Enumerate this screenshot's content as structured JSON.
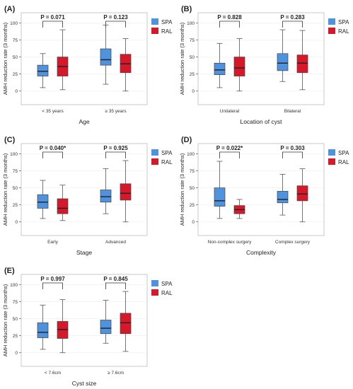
{
  "colors": {
    "spa": "#4F93DE",
    "ral": "#D6182B",
    "grid": "#eeeeee",
    "axis": "#555555",
    "text": "#222222"
  },
  "legend": [
    "SPA",
    "RAL"
  ],
  "chart_data": [
    {
      "panel": "(A)",
      "type": "box",
      "xlabel": "Age",
      "ylabel": "AMH reduction rate (3 months)",
      "ylim": [
        -20,
        115
      ],
      "yticks": [
        0,
        25,
        50,
        75,
        100
      ],
      "series": [
        "SPA",
        "RAL"
      ],
      "legend_position": "top-right",
      "groups": [
        {
          "label": "< 35 years",
          "p_label": "P = 0.071",
          "boxes": [
            {
              "series": "SPA",
              "min": 5,
              "q1": 22,
              "median": 29,
              "q3": 38,
              "max": 55
            },
            {
              "series": "RAL",
              "min": 2,
              "q1": 22,
              "median": 36,
              "q3": 50,
              "max": 90
            }
          ]
        },
        {
          "label": "≥ 35 years",
          "p_label": "P = 0.123",
          "boxes": [
            {
              "series": "SPA",
              "min": 10,
              "q1": 38,
              "median": 46,
              "q3": 62,
              "max": 97
            },
            {
              "series": "RAL",
              "min": 0,
              "q1": 27,
              "median": 40,
              "q3": 54,
              "max": 77
            }
          ]
        }
      ]
    },
    {
      "panel": "(B)",
      "type": "box",
      "xlabel": "Location of cyst",
      "ylabel": "AMH reduction rate (3 months)",
      "ylim": [
        -20,
        115
      ],
      "yticks": [
        0,
        25,
        50,
        75,
        100
      ],
      "series": [
        "SPA",
        "RAL"
      ],
      "legend_position": "top-right",
      "groups": [
        {
          "label": "Unilateral",
          "p_label": "P = 0.828",
          "boxes": [
            {
              "series": "SPA",
              "min": 5,
              "q1": 24,
              "median": 31,
              "q3": 41,
              "max": 70
            },
            {
              "series": "RAL",
              "min": 0,
              "q1": 22,
              "median": 34,
              "q3": 50,
              "max": 77
            }
          ]
        },
        {
          "label": "Bilateral",
          "p_label": "P = 0.283",
          "boxes": [
            {
              "series": "SPA",
              "min": 14,
              "q1": 30,
              "median": 41,
              "q3": 55,
              "max": 90
            },
            {
              "series": "RAL",
              "min": 2,
              "q1": 27,
              "median": 41,
              "q3": 53,
              "max": 89
            }
          ]
        }
      ]
    },
    {
      "panel": "(C)",
      "type": "box",
      "xlabel": "Stage",
      "ylabel": "AMH reduction rate (3 months)",
      "ylim": [
        -20,
        115
      ],
      "yticks": [
        0,
        25,
        50,
        75,
        100
      ],
      "series": [
        "SPA",
        "RAL"
      ],
      "legend_position": "top-right",
      "groups": [
        {
          "label": "Early",
          "p_label": "P = 0.040*",
          "boxes": [
            {
              "series": "SPA",
              "min": 5,
              "q1": 20,
              "median": 29,
              "q3": 40,
              "max": 61
            },
            {
              "series": "RAL",
              "min": 2,
              "q1": 12,
              "median": 20,
              "q3": 34,
              "max": 54
            }
          ]
        },
        {
          "label": "Advanced",
          "p_label": "P = 0.925",
          "boxes": [
            {
              "series": "SPA",
              "min": 12,
              "q1": 29,
              "median": 37,
              "q3": 47,
              "max": 78
            },
            {
              "series": "RAL",
              "min": 0,
              "q1": 32,
              "median": 42,
              "q3": 56,
              "max": 90
            }
          ]
        }
      ]
    },
    {
      "panel": "(D)",
      "type": "box",
      "xlabel": "Complexity",
      "ylabel": "AMH reduction rate (3 months)",
      "ylim": [
        -20,
        115
      ],
      "yticks": [
        0,
        25,
        50,
        75,
        100
      ],
      "series": [
        "SPA",
        "RAL"
      ],
      "legend_position": "top-right",
      "groups": [
        {
          "label": "Non-complex surgery",
          "p_label": "P = 0.022*",
          "boxes": [
            {
              "series": "SPA",
              "min": 5,
              "q1": 23,
              "median": 31,
              "q3": 50,
              "max": 89
            },
            {
              "series": "RAL",
              "min": 5,
              "q1": 12,
              "median": 18,
              "q3": 24,
              "max": 33
            }
          ]
        },
        {
          "label": "Complex surgery",
          "p_label": "P = 0.303",
          "boxes": [
            {
              "series": "SPA",
              "min": 10,
              "q1": 28,
              "median": 33,
              "q3": 45,
              "max": 70
            },
            {
              "series": "RAL",
              "min": 0,
              "q1": 31,
              "median": 41,
              "q3": 53,
              "max": 78
            }
          ]
        }
      ]
    },
    {
      "panel": "(E)",
      "type": "box",
      "xlabel": "Cyst size",
      "ylabel": "AMH reduction rate (3 months)",
      "ylim": [
        -20,
        115
      ],
      "yticks": [
        0,
        25,
        50,
        75,
        100
      ],
      "series": [
        "SPA",
        "RAL"
      ],
      "legend_position": "top-right",
      "groups": [
        {
          "label": "< 7.6cm",
          "p_label": "P = 0.997",
          "boxes": [
            {
              "series": "SPA",
              "min": 5,
              "q1": 22,
              "median": 30,
              "q3": 44,
              "max": 70
            },
            {
              "series": "RAL",
              "min": 0,
              "q1": 21,
              "median": 34,
              "q3": 46,
              "max": 78
            }
          ]
        },
        {
          "label": "≥ 7.6cm",
          "p_label": "P = 0.845",
          "boxes": [
            {
              "series": "SPA",
              "min": 14,
              "q1": 28,
              "median": 36,
              "q3": 48,
              "max": 77
            },
            {
              "series": "RAL",
              "min": 2,
              "q1": 28,
              "median": 44,
              "q3": 58,
              "max": 90
            }
          ]
        }
      ]
    }
  ]
}
